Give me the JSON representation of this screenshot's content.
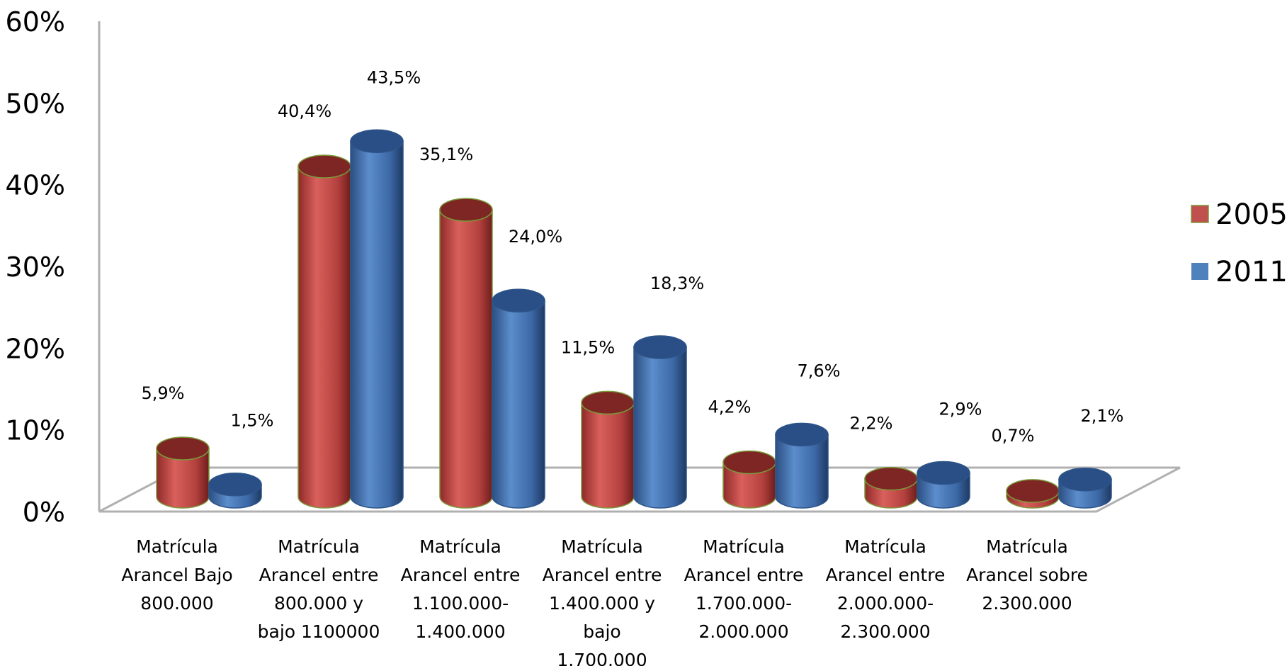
{
  "chart_data": {
    "type": "bar",
    "style": "3d-cylinder",
    "categories": [
      [
        "Matrícula",
        "Arancel Bajo",
        "800.000"
      ],
      [
        "Matrícula",
        "Arancel entre",
        "800.000 y",
        "bajo 1100000"
      ],
      [
        "Matrícula",
        "Arancel entre",
        "1.100.000-",
        "1.400.000"
      ],
      [
        "Matrícula",
        "Arancel entre",
        "1.400.000 y",
        "bajo",
        "1.700.000"
      ],
      [
        "Matrícula",
        "Arancel entre",
        "1.700.000-",
        "2.000.000"
      ],
      [
        "Matrícula",
        "Arancel entre",
        "2.000.000-",
        "2.300.000"
      ],
      [
        "Matrícula",
        "Arancel sobre",
        "2.300.000"
      ]
    ],
    "series": [
      {
        "name": "2005",
        "color": "#c0504d",
        "values": [
          5.9,
          40.4,
          35.1,
          11.5,
          4.2,
          2.2,
          0.7
        ],
        "labels": [
          "5,9%",
          "40,4%",
          "35,1%",
          "11,5%",
          "4,2%",
          "2,2%",
          "0,7%"
        ]
      },
      {
        "name": "2011",
        "color": "#4f81bd",
        "values": [
          1.5,
          43.5,
          24.0,
          18.3,
          7.6,
          2.9,
          2.1
        ],
        "labels": [
          "1,5%",
          "43,5%",
          "24,0%",
          "18,3%",
          "7,6%",
          "2,9%",
          "2,1%"
        ]
      }
    ],
    "yticks": [
      "0%",
      "10%",
      "20%",
      "30%",
      "40%",
      "50%",
      "60%"
    ],
    "ylim": [
      0,
      60
    ],
    "grid": false,
    "legend_position": "right"
  }
}
